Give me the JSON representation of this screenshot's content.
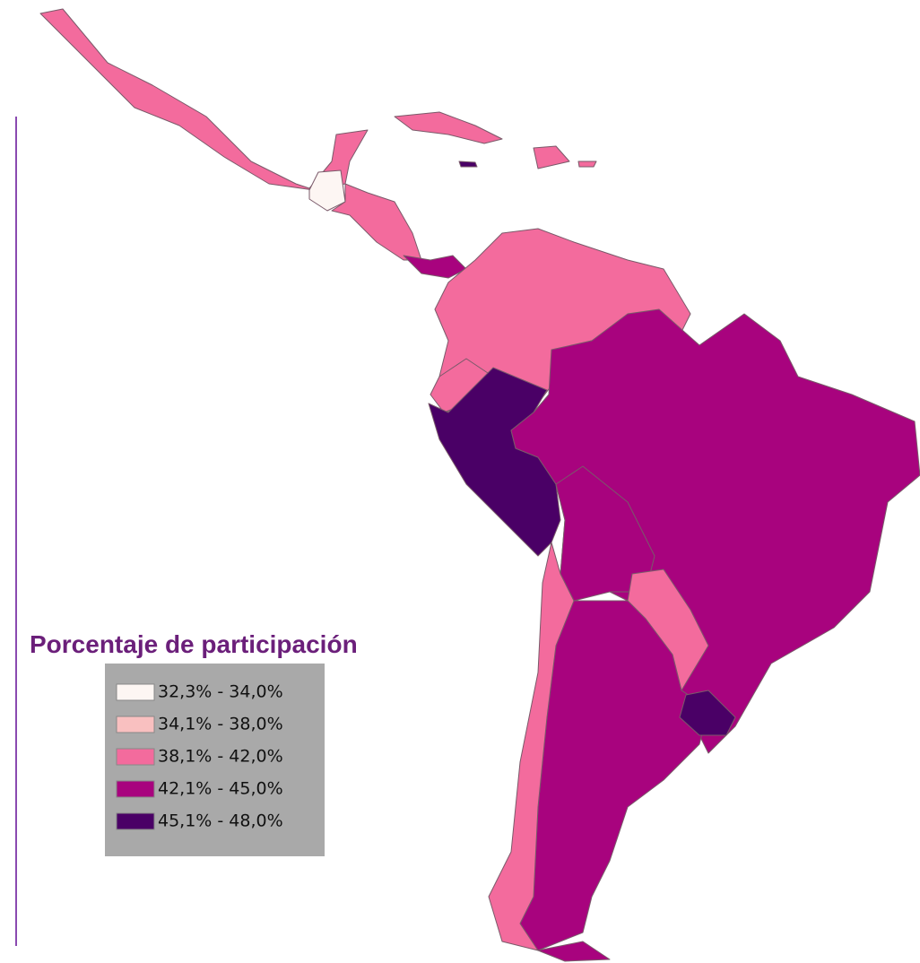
{
  "map": {
    "legend": {
      "title": "Porcentaje de participación",
      "items": [
        {
          "label": "32,3% - 34,0%",
          "color": "#fdf6f3"
        },
        {
          "label": "34,1% - 38,0%",
          "color": "#f9c0c0"
        },
        {
          "label": "38,1% - 42,0%",
          "color": "#f36b9d"
        },
        {
          "label": "42,1% - 45,0%",
          "color": "#a8037e"
        },
        {
          "label": "45,1% - 48,0%",
          "color": "#4a0066"
        }
      ]
    }
  }
}
